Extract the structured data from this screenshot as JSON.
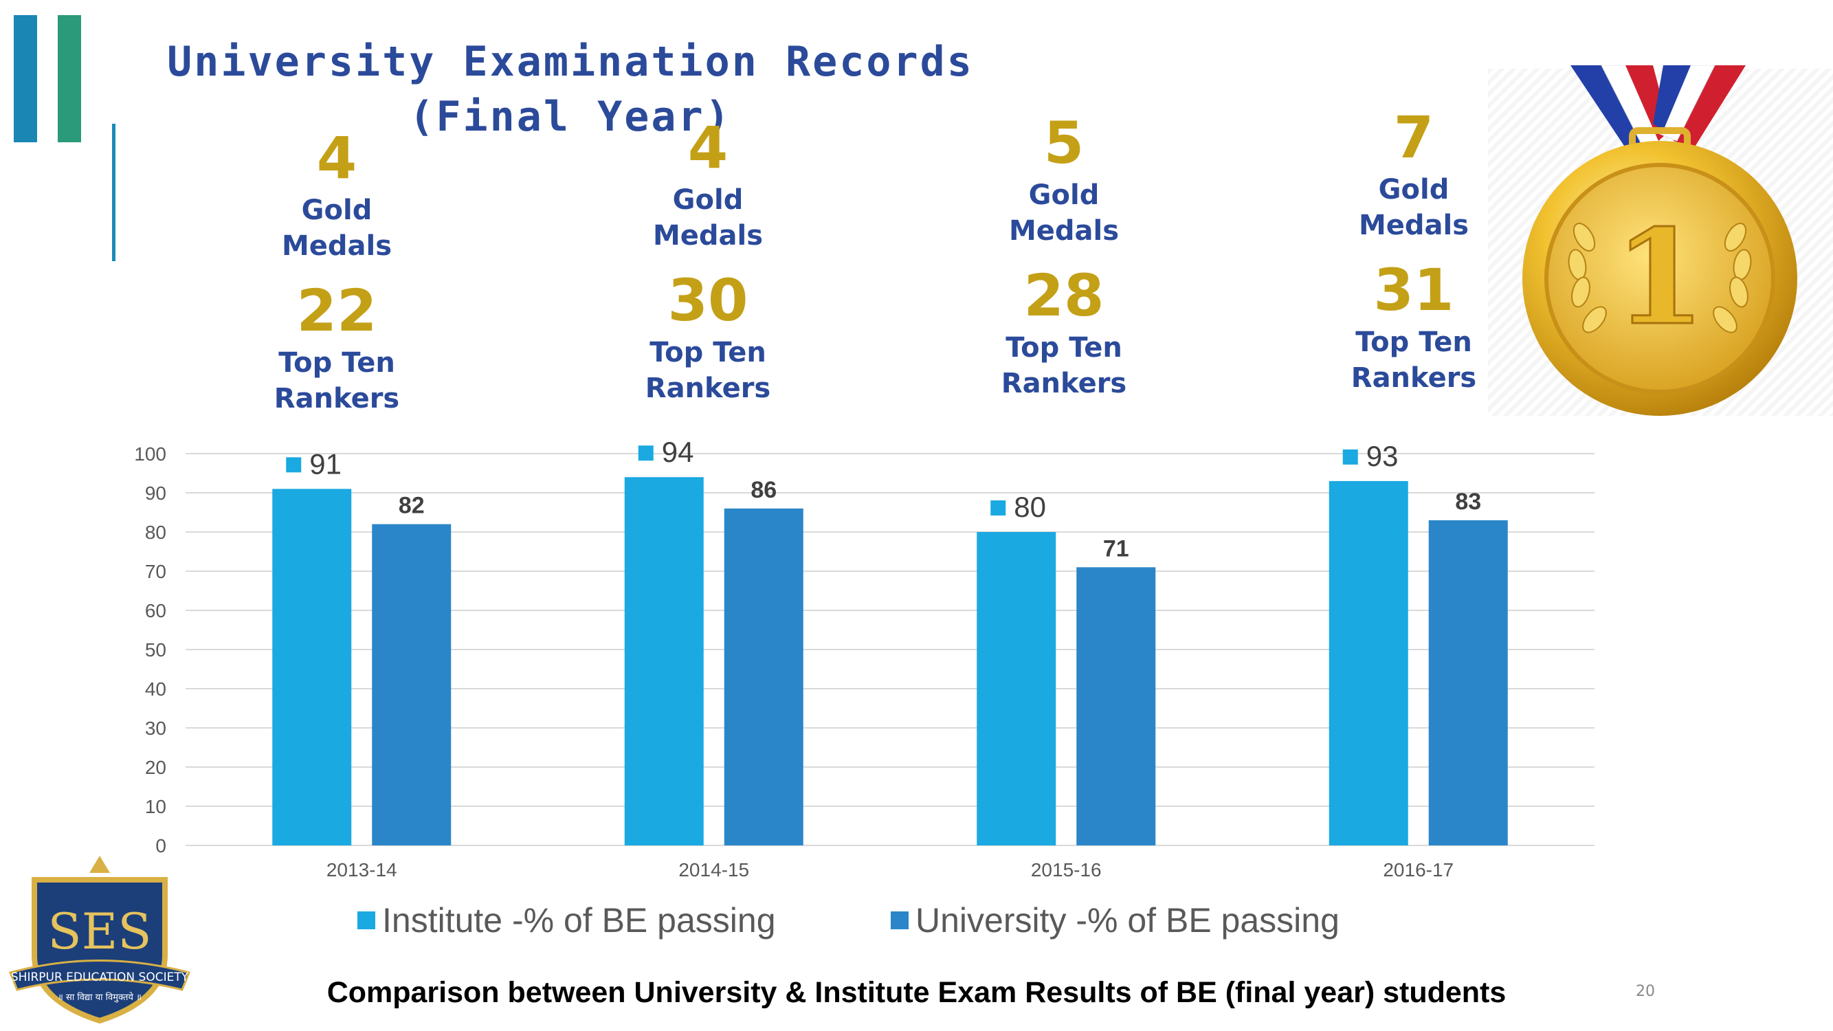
{
  "slide": {
    "title_line1": "University Examination Records",
    "title_line2": "(Final Year)",
    "caption": "Comparison between University & Institute Exam Results of BE (final year) students",
    "page_number": "20"
  },
  "stats": [
    {
      "year": "2013-14",
      "gold": "4",
      "gold_label1": "Gold",
      "gold_label2": "Medals",
      "rankers": "22",
      "rank_label1": "Top Ten",
      "rank_label2": "Rankers"
    },
    {
      "year": "2014-15",
      "gold": "4",
      "gold_label1": "Gold",
      "gold_label2": "Medals",
      "rankers": "30",
      "rank_label1": "Top Ten",
      "rank_label2": "Rankers"
    },
    {
      "year": "2015-16",
      "gold": "5",
      "gold_label1": "Gold",
      "gold_label2": "Medals",
      "rankers": "28",
      "rank_label1": "Top Ten",
      "rank_label2": "Rankers"
    },
    {
      "year": "2016-17",
      "gold": "7",
      "gold_label1": "Gold",
      "gold_label2": "Medals",
      "rankers": "31",
      "rank_label1": "Top Ten",
      "rank_label2": "Rankers"
    }
  ],
  "medal": {
    "numeral": "1"
  },
  "logo": {
    "text": "SES",
    "banner": "SHIRPUR EDUCATION SOCIETY",
    "motto": "॥ सा विद्या या विमुक्तये ॥"
  },
  "chart_data": {
    "type": "bar",
    "categories": [
      "2013-14",
      "2014-15",
      "2015-16",
      "2016-17"
    ],
    "series": [
      {
        "name": "Institute -% of BE passing",
        "values": [
          91,
          94,
          80,
          93
        ],
        "color": "#1ba9e1"
      },
      {
        "name": "University -% of BE passing",
        "values": [
          82,
          86,
          71,
          83
        ],
        "color": "#2a86c8"
      }
    ],
    "ylim": [
      0,
      100
    ],
    "yticks": [
      0,
      10,
      20,
      30,
      40,
      50,
      60,
      70,
      80,
      90,
      100
    ],
    "grid": true,
    "legend": "bottom"
  },
  "colors": {
    "gold_text": "#c4a017",
    "label_blue": "#2b4a9a",
    "accent_teal": "#2a9a7a",
    "accent_blue": "#1a8bb8"
  }
}
